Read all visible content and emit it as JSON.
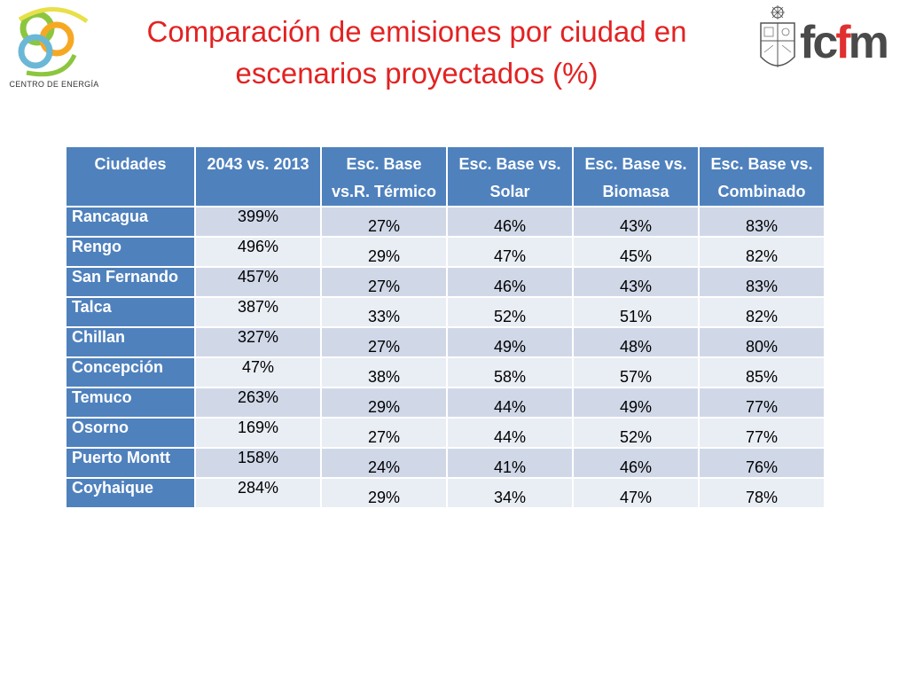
{
  "slide": {
    "title_line1": "Comparación de emisiones por ciudad en",
    "title_line2": "escenarios proyectados (%)"
  },
  "logos": {
    "left_caption": "CENTRO DE ENERGÍA",
    "right_text_part1": "fc",
    "right_text_part2": "f",
    "right_text_part3": "m"
  },
  "colors": {
    "title": "#e32222",
    "header_bg": "#4f81bd",
    "row_odd": "#d0d8e8",
    "row_even": "#e9edf4"
  },
  "table": {
    "headers": [
      {
        "l1": "Ciudades",
        "l2": ""
      },
      {
        "l1": "2043 vs. 2013",
        "l2": ""
      },
      {
        "l1": "Esc. Base",
        "l2": "vs.R. Térmico"
      },
      {
        "l1": "Esc. Base vs.",
        "l2": "Solar"
      },
      {
        "l1": "Esc. Base vs.",
        "l2": "Biomasa"
      },
      {
        "l1": "Esc. Base vs.",
        "l2": "Combinado"
      }
    ],
    "rows": [
      {
        "city": "Rancagua",
        "v2043": "399%",
        "termico": "27%",
        "solar": "46%",
        "biomasa": "43%",
        "combinado": "83%"
      },
      {
        "city": "Rengo",
        "v2043": "496%",
        "termico": "29%",
        "solar": "47%",
        "biomasa": "45%",
        "combinado": "82%"
      },
      {
        "city": "San Fernando",
        "v2043": "457%",
        "termico": "27%",
        "solar": "46%",
        "biomasa": "43%",
        "combinado": "83%"
      },
      {
        "city": "Talca",
        "v2043": "387%",
        "termico": "33%",
        "solar": "52%",
        "biomasa": "51%",
        "combinado": "82%"
      },
      {
        "city": "Chillan",
        "v2043": "327%",
        "termico": "27%",
        "solar": "49%",
        "biomasa": "48%",
        "combinado": "80%"
      },
      {
        "city": "Concepción",
        "v2043": "47%",
        "termico": "38%",
        "solar": "58%",
        "biomasa": "57%",
        "combinado": "85%"
      },
      {
        "city": "Temuco",
        "v2043": "263%",
        "termico": "29%",
        "solar": "44%",
        "biomasa": "49%",
        "combinado": "77%"
      },
      {
        "city": "Osorno",
        "v2043": "169%",
        "termico": "27%",
        "solar": "44%",
        "biomasa": "52%",
        "combinado": "77%"
      },
      {
        "city": "Puerto Montt",
        "v2043": "158%",
        "termico": "24%",
        "solar": "41%",
        "biomasa": "46%",
        "combinado": "76%"
      },
      {
        "city": "Coyhaique",
        "v2043": "284%",
        "termico": "29%",
        "solar": "34%",
        "biomasa": "47%",
        "combinado": "78%"
      }
    ]
  }
}
